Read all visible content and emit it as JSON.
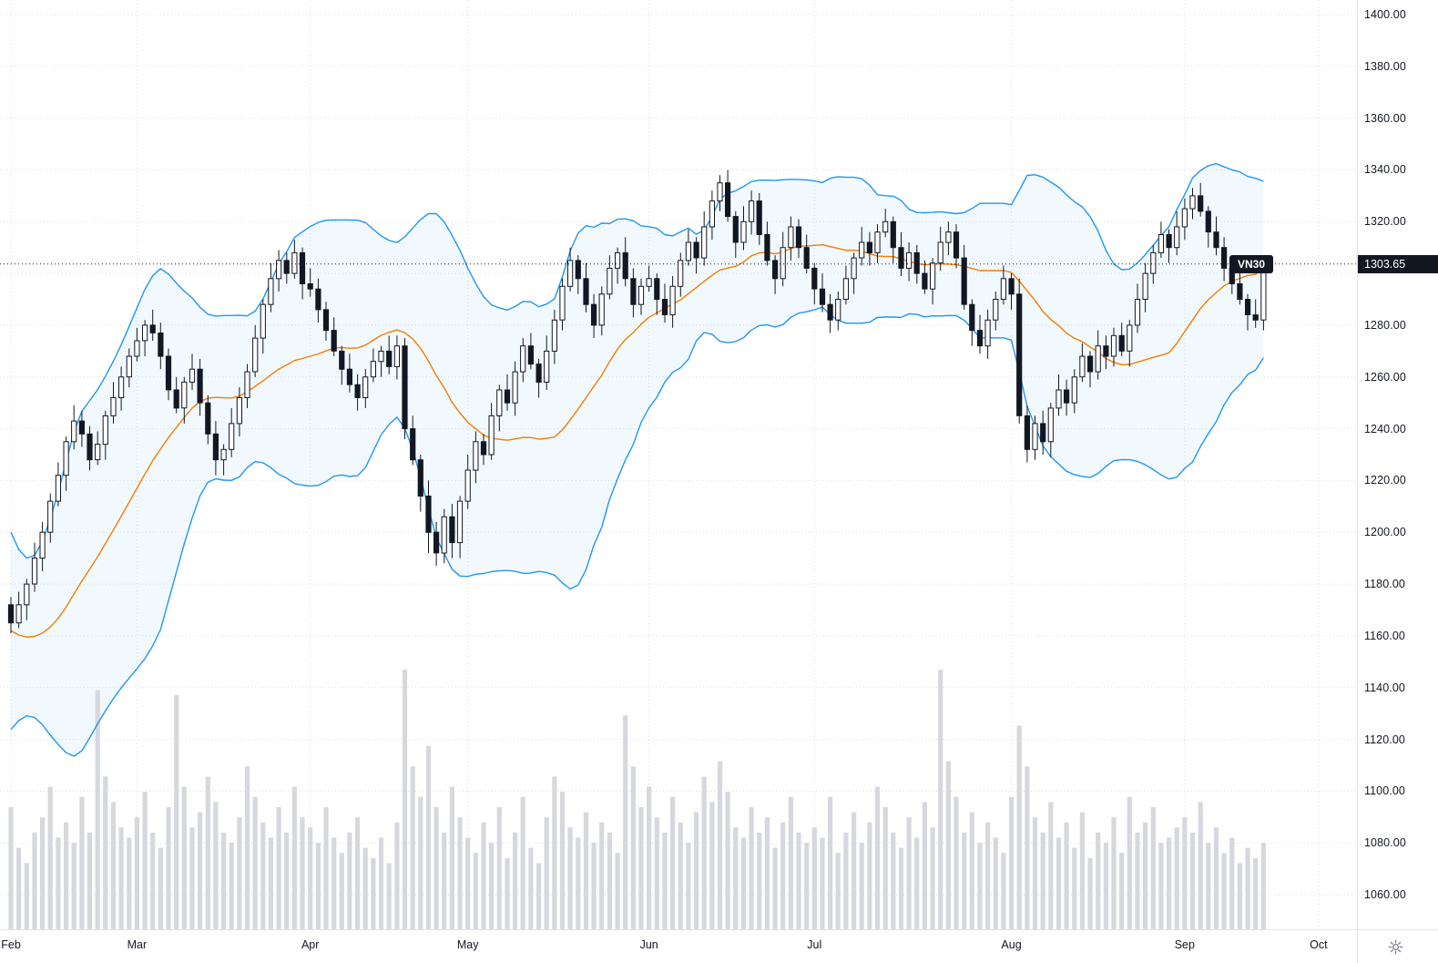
{
  "symbol_label": "VN30",
  "last_price_label": "1303.65",
  "colors": {
    "background": "#ffffff",
    "grid": "#dadce3",
    "candle_up_fill": "#ffffff",
    "candle_down_fill": "#131722",
    "candle_border": "#131722",
    "volume_bar": "#d6d8de",
    "bollinger_band_line": "#2196f3",
    "bollinger_basis_line": "#f57c00",
    "bollinger_fill": "rgba(33,150,243,0.06)",
    "last_price_line": "#131722",
    "badge_bg": "#131722",
    "badge_text": "#ffffff",
    "axis_text": "#131722",
    "axis_border": "#e0e3eb",
    "icon": "#787b86"
  },
  "chart_data": {
    "type": "candlestick",
    "title": "VN30",
    "last_price": 1303.65,
    "grid": true,
    "y_axis": {
      "min": 1060,
      "max": 1400,
      "step": 20,
      "tick_labels": [
        "1400.00",
        "1380.00",
        "1360.00",
        "1340.00",
        "1320.00",
        "1300.00",
        "1280.00",
        "1260.00",
        "1240.00",
        "1220.00",
        "1200.00",
        "1180.00",
        "1160.00",
        "1140.00",
        "1120.00",
        "1100.00",
        "1080.00",
        "1060.00"
      ]
    },
    "x_axis": {
      "unit": "trading-day-index",
      "month_ticks": [
        {
          "label": "Feb",
          "index": 0
        },
        {
          "label": "Mar",
          "index": 16
        },
        {
          "label": "Apr",
          "index": 38
        },
        {
          "label": "May",
          "index": 58
        },
        {
          "label": "Jun",
          "index": 81
        },
        {
          "label": "Jul",
          "index": 102
        },
        {
          "label": "Aug",
          "index": 127
        },
        {
          "label": "Sep",
          "index": 149
        },
        {
          "label": "Oct",
          "index": 166
        }
      ]
    },
    "series": {
      "open": [
        1172,
        1165,
        1172,
        1180,
        1190,
        1200,
        1212,
        1222,
        1235,
        1243,
        1238,
        1228,
        1234,
        1245,
        1252,
        1260,
        1268,
        1274,
        1280,
        1277,
        1268,
        1255,
        1248,
        1258,
        1263,
        1250,
        1238,
        1228,
        1232,
        1242,
        1252,
        1262,
        1275,
        1288,
        1298,
        1305,
        1300,
        1308,
        1296,
        1294,
        1286,
        1278,
        1270,
        1263,
        1257,
        1252,
        1260,
        1266,
        1270,
        1264,
        1272,
        1240,
        1228,
        1214,
        1200,
        1192,
        1206,
        1196,
        1212,
        1224,
        1235,
        1230,
        1245,
        1255,
        1250,
        1262,
        1272,
        1265,
        1258,
        1270,
        1282,
        1295,
        1305,
        1298,
        1288,
        1280,
        1292,
        1302,
        1308,
        1298,
        1288,
        1295,
        1298,
        1290,
        1284,
        1295,
        1305,
        1312,
        1306,
        1318,
        1328,
        1335,
        1322,
        1312,
        1320,
        1328,
        1315,
        1305,
        1298,
        1310,
        1318,
        1310,
        1302,
        1294,
        1288,
        1282,
        1290,
        1298,
        1306,
        1312,
        1308,
        1316,
        1320,
        1310,
        1302,
        1308,
        1300,
        1294,
        1304,
        1312,
        1316,
        1306,
        1288,
        1278,
        1272,
        1282,
        1290,
        1298,
        1292,
        1245,
        1232,
        1242,
        1235,
        1248,
        1255,
        1250,
        1260,
        1268,
        1262,
        1272,
        1268,
        1276,
        1270,
        1280,
        1290,
        1300,
        1308,
        1315,
        1310,
        1318,
        1325,
        1330,
        1324,
        1316,
        1310,
        1302,
        1296,
        1290,
        1284,
        1282
      ],
      "high": [
        1175,
        1177,
        1182,
        1196,
        1204,
        1215,
        1227,
        1237,
        1249,
        1247,
        1241,
        1239,
        1247,
        1258,
        1264,
        1271,
        1279,
        1282,
        1286,
        1281,
        1271,
        1260,
        1260,
        1269,
        1267,
        1253,
        1243,
        1234,
        1248,
        1256,
        1265,
        1280,
        1290,
        1304,
        1309,
        1308,
        1313,
        1310,
        1302,
        1298,
        1289,
        1283,
        1272,
        1269,
        1261,
        1263,
        1271,
        1272,
        1276,
        1276,
        1275,
        1245,
        1230,
        1220,
        1204,
        1209,
        1211,
        1214,
        1230,
        1239,
        1238,
        1250,
        1257,
        1261,
        1266,
        1275,
        1277,
        1267,
        1276,
        1286,
        1298,
        1310,
        1307,
        1304,
        1292,
        1295,
        1307,
        1310,
        1314,
        1302,
        1298,
        1303,
        1300,
        1296,
        1299,
        1308,
        1317,
        1314,
        1324,
        1332,
        1338,
        1340,
        1324,
        1326,
        1332,
        1331,
        1320,
        1307,
        1316,
        1322,
        1321,
        1315,
        1304,
        1300,
        1292,
        1293,
        1303,
        1308,
        1318,
        1316,
        1319,
        1325,
        1322,
        1316,
        1312,
        1311,
        1305,
        1306,
        1318,
        1320,
        1319,
        1311,
        1290,
        1284,
        1286,
        1293,
        1303,
        1300,
        1298,
        1249,
        1245,
        1247,
        1250,
        1261,
        1259,
        1263,
        1273,
        1270,
        1278,
        1276,
        1279,
        1281,
        1282,
        1296,
        1304,
        1311,
        1320,
        1317,
        1324,
        1329,
        1333,
        1335,
        1326,
        1322,
        1314,
        1305,
        1301,
        1292,
        1290,
        1306
      ],
      "low": [
        1161,
        1163,
        1166,
        1177,
        1185,
        1196,
        1210,
        1216,
        1232,
        1233,
        1224,
        1226,
        1228,
        1242,
        1247,
        1256,
        1266,
        1268,
        1274,
        1263,
        1251,
        1246,
        1242,
        1255,
        1245,
        1234,
        1222,
        1222,
        1229,
        1237,
        1248,
        1260,
        1269,
        1285,
        1293,
        1296,
        1298,
        1290,
        1291,
        1281,
        1274,
        1268,
        1257,
        1254,
        1247,
        1248,
        1258,
        1260,
        1261,
        1259,
        1236,
        1226,
        1208,
        1192,
        1187,
        1188,
        1190,
        1190,
        1209,
        1219,
        1226,
        1228,
        1239,
        1247,
        1245,
        1258,
        1263,
        1252,
        1255,
        1265,
        1278,
        1293,
        1292,
        1285,
        1275,
        1276,
        1290,
        1296,
        1295,
        1283,
        1284,
        1293,
        1284,
        1281,
        1279,
        1291,
        1303,
        1300,
        1303,
        1313,
        1324,
        1320,
        1306,
        1309,
        1315,
        1311,
        1303,
        1292,
        1295,
        1305,
        1306,
        1300,
        1288,
        1285,
        1277,
        1278,
        1288,
        1292,
        1303,
        1303,
        1304,
        1314,
        1304,
        1299,
        1297,
        1296,
        1292,
        1288,
        1301,
        1307,
        1302,
        1286,
        1272,
        1269,
        1267,
        1278,
        1288,
        1286,
        1242,
        1227,
        1228,
        1230,
        1229,
        1245,
        1245,
        1246,
        1258,
        1256,
        1259,
        1263,
        1264,
        1268,
        1264,
        1277,
        1285,
        1296,
        1306,
        1304,
        1307,
        1313,
        1321,
        1322,
        1310,
        1307,
        1297,
        1292,
        1288,
        1278,
        1279,
        1278
      ],
      "close": [
        1165,
        1172,
        1180,
        1190,
        1200,
        1212,
        1222,
        1235,
        1243,
        1238,
        1228,
        1234,
        1245,
        1252,
        1260,
        1268,
        1274,
        1280,
        1277,
        1268,
        1255,
        1248,
        1258,
        1263,
        1250,
        1238,
        1228,
        1232,
        1242,
        1252,
        1262,
        1275,
        1288,
        1298,
        1305,
        1300,
        1308,
        1296,
        1294,
        1286,
        1278,
        1270,
        1263,
        1257,
        1252,
        1260,
        1266,
        1270,
        1264,
        1272,
        1240,
        1228,
        1214,
        1200,
        1192,
        1206,
        1196,
        1212,
        1224,
        1235,
        1230,
        1245,
        1255,
        1250,
        1262,
        1272,
        1265,
        1258,
        1270,
        1282,
        1295,
        1305,
        1298,
        1288,
        1280,
        1292,
        1302,
        1308,
        1298,
        1288,
        1295,
        1298,
        1290,
        1284,
        1295,
        1305,
        1312,
        1306,
        1318,
        1328,
        1335,
        1322,
        1312,
        1320,
        1328,
        1315,
        1305,
        1298,
        1310,
        1318,
        1310,
        1302,
        1294,
        1288,
        1282,
        1290,
        1298,
        1306,
        1312,
        1308,
        1316,
        1320,
        1310,
        1302,
        1308,
        1300,
        1294,
        1304,
        1312,
        1316,
        1306,
        1288,
        1278,
        1272,
        1282,
        1290,
        1298,
        1292,
        1245,
        1232,
        1242,
        1235,
        1248,
        1255,
        1250,
        1260,
        1268,
        1262,
        1272,
        1268,
        1276,
        1270,
        1280,
        1290,
        1300,
        1308,
        1315,
        1310,
        1318,
        1325,
        1330,
        1324,
        1316,
        1310,
        1302,
        1296,
        1290,
        1284,
        1282,
        1303.65
      ],
      "volume": [
        120,
        80,
        65,
        95,
        110,
        140,
        90,
        105,
        85,
        130,
        95,
        235,
        150,
        125,
        100,
        90,
        110,
        135,
        95,
        80,
        120,
        230,
        140,
        100,
        115,
        150,
        125,
        95,
        85,
        110,
        160,
        130,
        105,
        90,
        120,
        95,
        140,
        110,
        100,
        85,
        120,
        90,
        75,
        95,
        110,
        80,
        70,
        90,
        65,
        105,
        255,
        160,
        130,
        180,
        120,
        95,
        140,
        110,
        90,
        75,
        105,
        85,
        120,
        70,
        95,
        130,
        80,
        65,
        110,
        150,
        135,
        100,
        90,
        115,
        85,
        105,
        95,
        75,
        210,
        160,
        120,
        140,
        110,
        95,
        130,
        105,
        85,
        115,
        150,
        125,
        165,
        135,
        100,
        90,
        120,
        95,
        110,
        80,
        105,
        130,
        95,
        85,
        100,
        90,
        130,
        75,
        95,
        115,
        85,
        105,
        140,
        120,
        95,
        80,
        110,
        90,
        125,
        100,
        255,
        165,
        130,
        95,
        115,
        85,
        105,
        90,
        75,
        130,
        200,
        160,
        110,
        95,
        125,
        90,
        105,
        80,
        115,
        70,
        95,
        85,
        110,
        75,
        130,
        95,
        105,
        120,
        85,
        90,
        100,
        110,
        95,
        125,
        85,
        100,
        75,
        90,
        65,
        80,
        70,
        85
      ]
    },
    "indicators": {
      "bollinger_bands": {
        "period": 20,
        "stddev_mult": 2,
        "pre_window_closes": [
          1215,
          1205,
          1195,
          1185,
          1175,
          1165,
          1155,
          1148,
          1142,
          1138,
          1136,
          1138,
          1142,
          1148,
          1154,
          1160,
          1166,
          1170,
          1174,
          1178
        ]
      }
    }
  }
}
